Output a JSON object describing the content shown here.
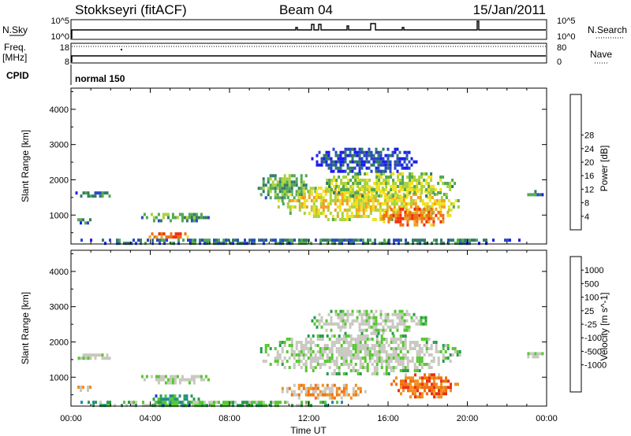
{
  "header": {
    "station": "Stokkseyri (fitACF)",
    "beam": "Beam 04",
    "date": "15/Jan/2011"
  },
  "summary_panels": {
    "nsky_label": "N.Sky",
    "nsky_ticks": [
      "10^5",
      "10^0"
    ],
    "nsearch_label": "N.Search",
    "nsearch_ticks": [
      "10^5",
      "10^0"
    ],
    "freq_label": "Freq.",
    "freq_unit": "[MHz]",
    "freq_ticks": [
      "18",
      "8"
    ],
    "nave_label": "Nave",
    "nave_ticks": [
      "80",
      "0"
    ],
    "cpid_label": "CPID",
    "cpid_value": "normal 150"
  },
  "chart_data": [
    {
      "type": "heatmap",
      "name": "Power",
      "xlabel": "Time UT",
      "ylabel": "Slant Range [km]",
      "x_ticks": [
        "00:00",
        "04:00",
        "08:00",
        "12:00",
        "16:00",
        "20:00",
        "00:00"
      ],
      "xlim_hours": [
        0,
        24
      ],
      "y_ticks": [
        1000,
        2000,
        3000,
        4000
      ],
      "ylim": [
        180,
        4600
      ],
      "colorbar": {
        "label": "Power [dB]",
        "ticks": [
          "4",
          "8",
          "12",
          "16",
          "20",
          "24",
          "28"
        ],
        "colors": [
          "#1d1df0",
          "#2848c8",
          "#337a66",
          "#52a852",
          "#a8d23a",
          "#f0e020",
          "#f0a020",
          "#f07010",
          "#ee3010",
          "#d80a0a"
        ]
      },
      "regions": [
        {
          "t0": 0.1,
          "t1": 2.2,
          "r0": 1520,
          "r1": 1760,
          "level": 2
        },
        {
          "t0": 0.2,
          "t1": 1.0,
          "r0": 800,
          "r1": 1000,
          "level": 2
        },
        {
          "t0": 3.3,
          "t1": 7.0,
          "r0": 850,
          "r1": 1150,
          "level": 3
        },
        {
          "t0": 3.8,
          "t1": 6.0,
          "r0": 330,
          "r1": 600,
          "level": 7
        },
        {
          "t0": 9.3,
          "t1": 12.5,
          "r0": 1400,
          "r1": 2250,
          "level": 3
        },
        {
          "t0": 10.3,
          "t1": 19.6,
          "r0": 850,
          "r1": 1900,
          "level": 5
        },
        {
          "t0": 12.5,
          "t1": 19.4,
          "r0": 1500,
          "r1": 2300,
          "level": 4
        },
        {
          "t0": 15.5,
          "t1": 19.2,
          "r0": 700,
          "r1": 1300,
          "level": 7
        },
        {
          "t0": 12.0,
          "t1": 17.5,
          "r0": 2200,
          "r1": 3000,
          "level": 1
        },
        {
          "t0": 0.0,
          "t1": 23.0,
          "r0": 180,
          "r1": 420,
          "level": 2
        },
        {
          "t0": 22.9,
          "t1": 23.8,
          "r0": 1550,
          "r1": 1800,
          "level": 2
        }
      ]
    },
    {
      "type": "heatmap",
      "name": "Velocity",
      "xlabel": "Time UT",
      "ylabel": "Slant Range [km]",
      "x_ticks": [
        "00:00",
        "04:00",
        "08:00",
        "12:00",
        "16:00",
        "20:00",
        "00:00"
      ],
      "xlim_hours": [
        0,
        24
      ],
      "y_ticks": [
        1000,
        2000,
        3000,
        4000
      ],
      "ylim": [
        180,
        4600
      ],
      "colorbar": {
        "label": "Velocity [m s^-1]",
        "ticks": [
          "1000",
          "500",
          "100",
          "25",
          "-25",
          "-100",
          "-500",
          "-1000"
        ],
        "colors": [
          "#1a3ccc",
          "#2288a8",
          "#2a9a50",
          "#55c830",
          "#c8c8c0",
          "#c8c8c0",
          "#f09020",
          "#f07010",
          "#ee3010",
          "#d80a0a"
        ]
      },
      "regions": [
        {
          "t0": 0.1,
          "t1": 2.2,
          "r0": 1520,
          "r1": 1760,
          "level": 4
        },
        {
          "t0": 3.3,
          "t1": 7.0,
          "r0": 850,
          "r1": 1150,
          "level": 4
        },
        {
          "t0": 9.3,
          "t1": 19.6,
          "r0": 1100,
          "r1": 2300,
          "level": 4
        },
        {
          "t0": 12.0,
          "t1": 18.0,
          "r0": 2250,
          "r1": 3000,
          "level": 4
        },
        {
          "t0": 10.5,
          "t1": 15.0,
          "r0": 400,
          "r1": 900,
          "level": 6
        },
        {
          "t0": 16.0,
          "t1": 19.5,
          "r0": 400,
          "r1": 1200,
          "level": 7
        },
        {
          "t0": 0.0,
          "t1": 14.0,
          "r0": 180,
          "r1": 420,
          "level": 3
        },
        {
          "t0": 4.0,
          "t1": 6.5,
          "r0": 180,
          "r1": 600,
          "level": 2
        },
        {
          "t0": 0.2,
          "t1": 1.0,
          "r0": 650,
          "r1": 850,
          "level": 6
        },
        {
          "t0": 22.9,
          "t1": 23.8,
          "r0": 1550,
          "r1": 1800,
          "level": 4
        }
      ]
    }
  ]
}
